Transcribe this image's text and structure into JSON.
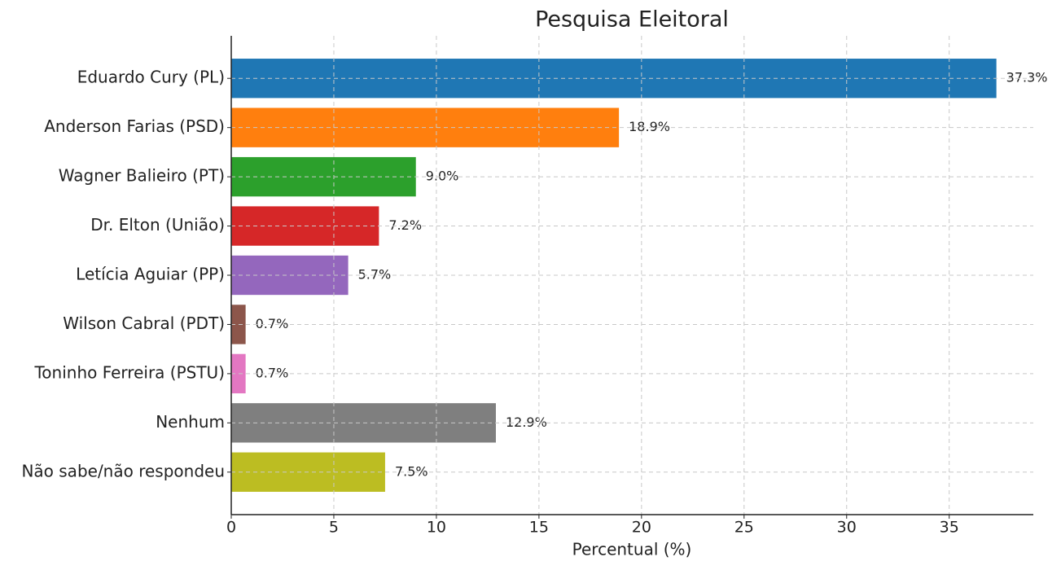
{
  "chart_data": {
    "type": "barh",
    "title": "Pesquisa Eleitoral",
    "x_label": "Percentual (%)",
    "categories": [
      "Eduardo Cury (PL)",
      "Anderson Farias (PSD)",
      "Wagner Balieiro (PT)",
      "Dr. Elton (União)",
      "Letícia Aguiar (PP)",
      "Wilson Cabral (PDT)",
      "Toninho Ferreira (PSTU)",
      "Nenhum",
      "Não sabe/não respondeu"
    ],
    "values": [
      37.3,
      18.9,
      9.0,
      7.2,
      5.7,
      0.7,
      0.7,
      12.9,
      7.5
    ],
    "value_labels": [
      "37.3%",
      "18.9%",
      "9.0%",
      "7.2%",
      "5.7%",
      "0.7%",
      "0.7%",
      "12.9%",
      "7.5%"
    ],
    "colors": [
      "#1f77b4",
      "#ff7f0e",
      "#2ca02c",
      "#d62728",
      "#9467bd",
      "#8c564b",
      "#e377c2",
      "#7f7f7f",
      "#bcbd22"
    ],
    "xlim": [
      0,
      39.1
    ],
    "xticks": [
      0,
      5,
      10,
      15,
      20,
      25,
      30,
      35
    ],
    "grid": true
  }
}
